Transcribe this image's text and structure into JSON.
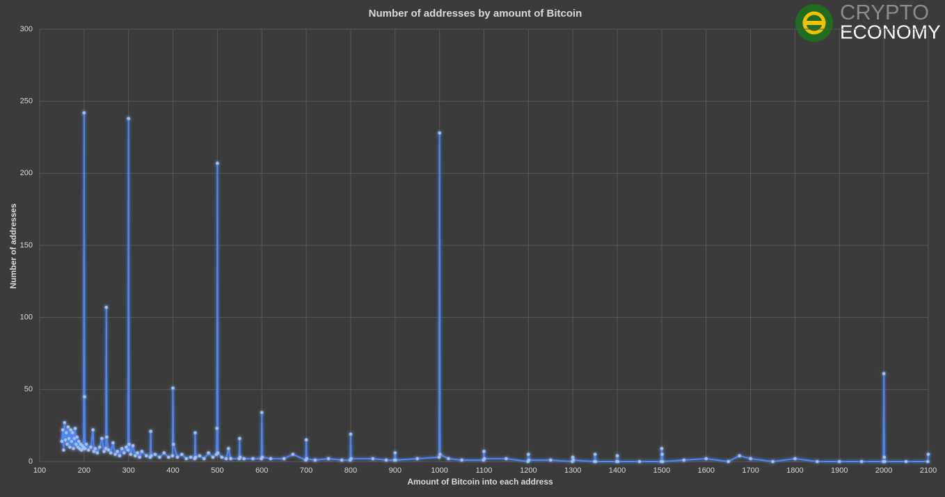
{
  "chart_data": {
    "type": "line",
    "title": "Number of addresses by amount of Bitcoin",
    "x_label": "Amount of Bitcoin into each address",
    "y_label": "Number of addresses",
    "color": "#4f86f0",
    "markers": true,
    "grid": true,
    "xlim": [
      100,
      2100
    ],
    "xticks": [
      100,
      200,
      300,
      400,
      500,
      600,
      700,
      800,
      900,
      1000,
      1100,
      1200,
      1300,
      1400,
      1500,
      1600,
      1700,
      1800,
      1900,
      2000,
      2100
    ],
    "ylim": [
      0,
      300
    ],
    "yticks": [
      0,
      50,
      100,
      150,
      200,
      250,
      300
    ],
    "x": [
      150,
      152,
      154,
      156,
      158,
      160,
      162,
      164,
      166,
      168,
      170,
      172,
      174,
      176,
      178,
      180,
      182,
      184,
      186,
      188,
      190,
      192,
      194,
      196,
      198,
      199,
      200,
      201,
      202,
      205,
      210,
      215,
      220,
      222,
      225,
      230,
      235,
      240,
      245,
      249,
      250,
      251,
      255,
      260,
      265,
      270,
      275,
      280,
      285,
      290,
      295,
      299,
      300,
      301,
      305,
      310,
      315,
      320,
      325,
      330,
      340,
      349,
      350,
      351,
      360,
      370,
      380,
      390,
      399,
      400,
      401,
      410,
      420,
      430,
      440,
      449,
      450,
      451,
      460,
      470,
      480,
      490,
      498,
      499,
      500,
      501,
      510,
      520,
      525,
      530,
      549,
      550,
      551,
      560,
      580,
      599,
      600,
      601,
      620,
      650,
      670,
      699,
      700,
      701,
      720,
      750,
      780,
      799,
      800,
      801,
      850,
      880,
      899,
      900,
      901,
      950,
      999,
      1000,
      1001,
      1020,
      1050,
      1099,
      1100,
      1101,
      1150,
      1199,
      1200,
      1201,
      1250,
      1299,
      1300,
      1301,
      1349,
      1350,
      1351,
      1399,
      1400,
      1401,
      1450,
      1499,
      1500,
      1501,
      1502,
      1550,
      1600,
      1650,
      1675,
      1700,
      1750,
      1800,
      1850,
      1900,
      1950,
      1999,
      2000,
      2001,
      2002,
      2050,
      2099,
      2100
    ],
    "values": [
      14,
      22,
      8,
      27,
      15,
      20,
      12,
      24,
      16,
      10,
      22,
      14,
      20,
      9,
      16,
      23,
      12,
      17,
      10,
      14,
      9,
      12,
      8,
      11,
      9,
      10,
      242,
      45,
      9,
      12,
      8,
      10,
      22,
      7,
      9,
      6,
      10,
      16,
      7,
      9,
      107,
      17,
      8,
      6,
      13,
      5,
      7,
      4,
      9,
      6,
      10,
      8,
      238,
      12,
      5,
      11,
      4,
      6,
      3,
      7,
      4,
      3,
      21,
      4,
      5,
      3,
      6,
      3,
      4,
      51,
      12,
      3,
      5,
      2,
      3,
      2,
      20,
      3,
      4,
      2,
      6,
      3,
      5,
      23,
      207,
      6,
      3,
      2,
      9,
      2,
      2,
      16,
      3,
      2,
      2,
      2,
      34,
      3,
      2,
      2,
      5,
      1,
      15,
      2,
      1,
      2,
      1,
      1,
      19,
      2,
      2,
      1,
      1,
      6,
      1,
      2,
      3,
      228,
      5,
      2,
      1,
      1,
      7,
      2,
      2,
      0,
      5,
      1,
      1,
      0,
      3,
      1,
      0,
      5,
      0,
      0,
      4,
      0,
      0,
      0,
      9,
      5,
      0,
      1,
      2,
      0,
      4,
      2,
      0,
      2,
      0,
      0,
      0,
      0,
      61,
      3,
      0,
      0,
      0,
      5
    ]
  },
  "logo": {
    "line1": "CRYPTO",
    "line2": "ECONOMY"
  }
}
